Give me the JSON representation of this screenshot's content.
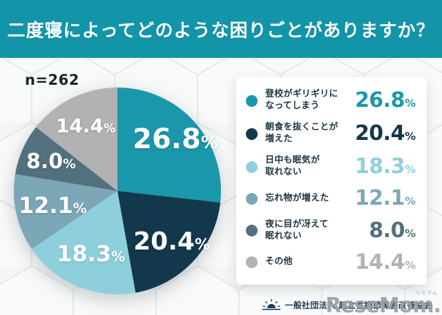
{
  "header": {
    "title": "二度寝によってどのような困りごとがありますか？"
  },
  "sample": {
    "label": "n=262"
  },
  "chart_data": {
    "type": "pie",
    "title": "二度寝によってどのような困りごとがありますか？",
    "sample_size": "n=262",
    "unit": "%",
    "start_angle_deg": 0,
    "direction": "clockwise",
    "legend_position": "right",
    "slices": [
      {
        "label": "登校がギリギリになってしまう",
        "legend_lines": [
          "登校がギリギリに",
          "なってしまう"
        ],
        "value": 26.8,
        "display": "26.8",
        "color": "#1b97ab"
      },
      {
        "label": "朝食を抜くことが増えた",
        "legend_lines": [
          "朝食を抜くことが",
          "増えた"
        ],
        "value": 20.4,
        "display": "20.4",
        "color": "#13384c"
      },
      {
        "label": "日中も眠気が取れない",
        "legend_lines": [
          "日中も眠気が",
          "取れない"
        ],
        "value": 18.3,
        "display": "18.3",
        "color": "#8ecfdc"
      },
      {
        "label": "忘れ物が増えた",
        "legend_lines": [
          "忘れ物が増えた"
        ],
        "value": 12.1,
        "display": "12.1",
        "color": "#7ca7b6"
      },
      {
        "label": "夜に目が冴えて眠れない",
        "legend_lines": [
          "夜に目が冴えて",
          "眠れない"
        ],
        "value": 8.0,
        "display": "8.0",
        "color": "#53707e"
      },
      {
        "label": "その他",
        "legend_lines": [
          "その他"
        ],
        "value": 14.4,
        "display": "14.4",
        "color": "#b0b2b3"
      }
    ]
  },
  "footer": {
    "organization": "一般社団法人 起立性調節障害改善協会",
    "watermark": "ReseMom.",
    "watermark_ruby": "リセマム"
  },
  "colors": {
    "header_bg": "#1295a9",
    "header_text": "#ffffff",
    "background": "#f4f5f6",
    "card_bg": "#ffffff",
    "legend_text": "#1d3440",
    "n_text": "#16242d",
    "footer_text": "#1e3a55",
    "watermark": "#9aa0a5"
  }
}
